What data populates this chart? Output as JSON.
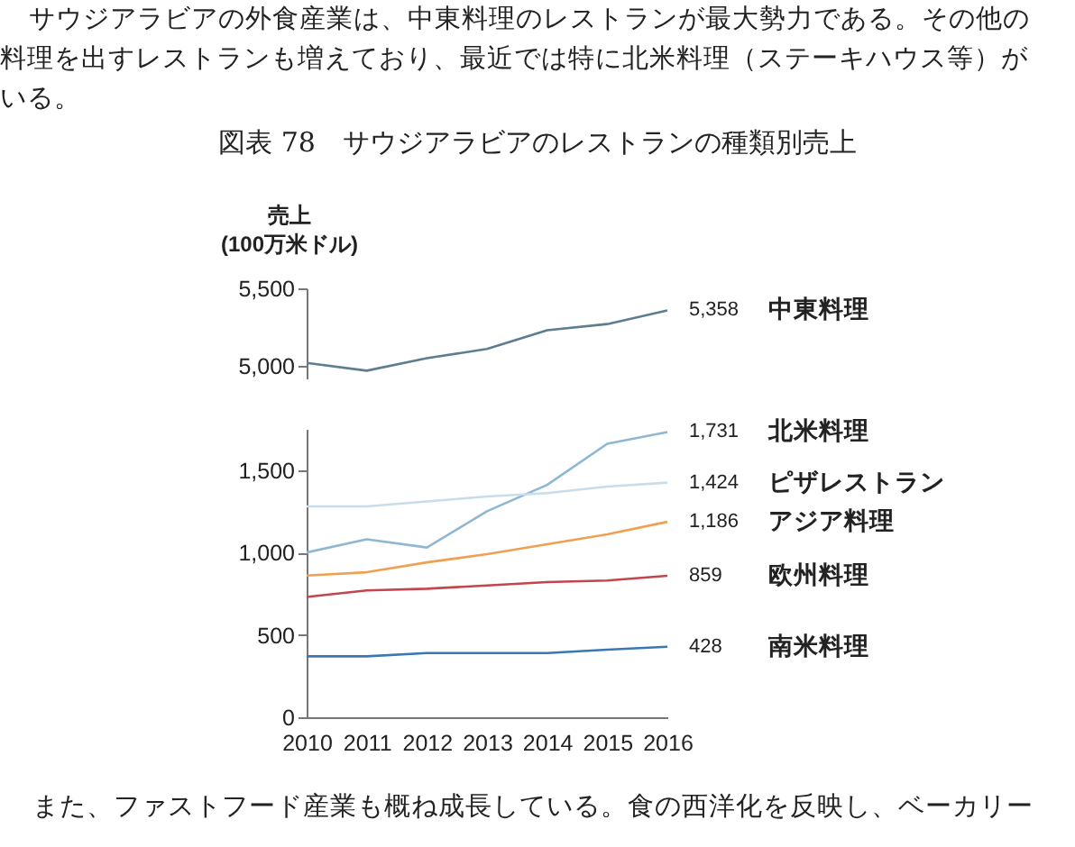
{
  "chart_data": [
    {
      "type": "line",
      "title": "図表 78　サウジアラビアのレストランの種類別売上",
      "ylabel": "売上\n(100万米ドル)",
      "annotations": [
        "サウジアラビアの外食産業は、中東料理のレストランが最大勢力である。その他の",
        "料理を出すレストランも増えており、最近では特に北米料理（ステーキハウス等）が",
        "いる。"
      ],
      "categories": [
        "2010",
        "2011",
        "2012",
        "2013",
        "2014",
        "2015",
        "2016"
      ],
      "ylim": [
        4920,
        5500
      ],
      "yticks": [
        {
          "value": 5000,
          "label": "5,000"
        },
        {
          "value": 5500,
          "label": "5,500"
        }
      ],
      "tick_labels": "y",
      "series": [
        {
          "name": "中東料理",
          "color": "#5d7d91",
          "values": [
            5020,
            4970,
            5050,
            5110,
            5230,
            5270,
            5358
          ],
          "value_labels": [
            null,
            null,
            null,
            null,
            null,
            null,
            "5,358"
          ]
        }
      ]
    },
    {
      "type": "line",
      "annotations": [
        "また、ファストフード産業も概ね成長している。食の西洋化を反映し、ベーカリー"
      ],
      "categories": [
        "2010",
        "2011",
        "2012",
        "2013",
        "2014",
        "2015",
        "2016"
      ],
      "ylim": [
        0,
        1750
      ],
      "yticks": [
        0,
        500,
        {
          "value": 1000,
          "label": "1,000"
        },
        {
          "value": 1500,
          "label": "1,500"
        }
      ],
      "series": [
        {
          "name": "北米料理",
          "color": "#8fb6d2",
          "values": [
            1000,
            1080,
            1030,
            1250,
            1410,
            1660,
            1731
          ],
          "value_labels": [
            null,
            null,
            null,
            null,
            null,
            null,
            "1,731"
          ]
        },
        {
          "name": "ピザレストラン",
          "color": "#c8dde9",
          "values": [
            1280,
            1280,
            1310,
            1340,
            1360,
            1400,
            1424
          ],
          "value_labels": [
            null,
            null,
            null,
            null,
            null,
            null,
            "1,424"
          ]
        },
        {
          "name": "アジア料理",
          "color": "#f0a050",
          "values": [
            860,
            880,
            940,
            990,
            1050,
            1110,
            1186
          ],
          "value_labels": [
            null,
            null,
            null,
            null,
            null,
            null,
            "1,186"
          ]
        },
        {
          "name": "欧州料理",
          "color": "#c2464c",
          "values": [
            730,
            770,
            780,
            800,
            820,
            830,
            859
          ],
          "value_labels": [
            null,
            null,
            null,
            null,
            null,
            null,
            "859"
          ]
        },
        {
          "name": "南米料理",
          "color": "#3a78b5",
          "values": [
            370,
            370,
            390,
            390,
            390,
            410,
            428
          ],
          "value_labels": [
            null,
            null,
            null,
            null,
            null,
            null,
            "428"
          ]
        }
      ]
    }
  ]
}
